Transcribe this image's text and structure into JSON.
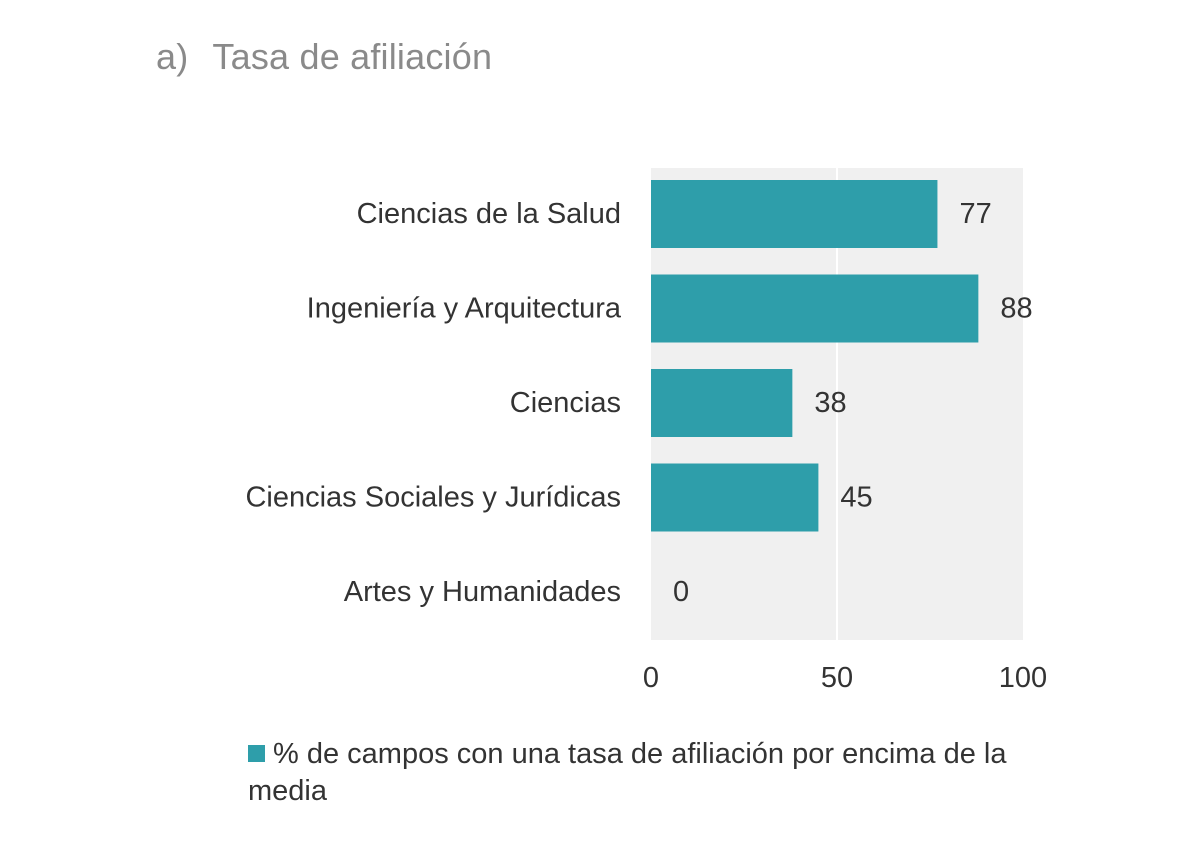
{
  "panel": {
    "letter": "a)",
    "title": "Tasa de afiliación"
  },
  "colors": {
    "bar": "#2e9eaa",
    "plot_background": "#f0f0f0",
    "gridline": "#ffffff",
    "text": "#333333",
    "title": "#8a8a8a"
  },
  "chart_data": {
    "type": "bar",
    "orientation": "horizontal",
    "title": "Tasa de afiliación",
    "categories": [
      "Ciencias de la Salud",
      "Ingeniería y Arquitectura",
      "Ciencias",
      "Ciencias Sociales y Jurídicas",
      "Artes y Humanidades"
    ],
    "values": [
      77,
      88,
      38,
      45,
      0
    ],
    "value_labels": [
      "77",
      "88",
      "38",
      "45",
      "0"
    ],
    "xlim": [
      0,
      100
    ],
    "xticks": [
      0,
      50,
      100
    ],
    "xtick_labels": [
      "0",
      "50",
      "100"
    ],
    "grid": true,
    "xlabel": "",
    "ylabel": "",
    "legend": {
      "position": "bottom",
      "entries": [
        "% de campos con una tasa de afiliación por encima de la media"
      ]
    }
  }
}
